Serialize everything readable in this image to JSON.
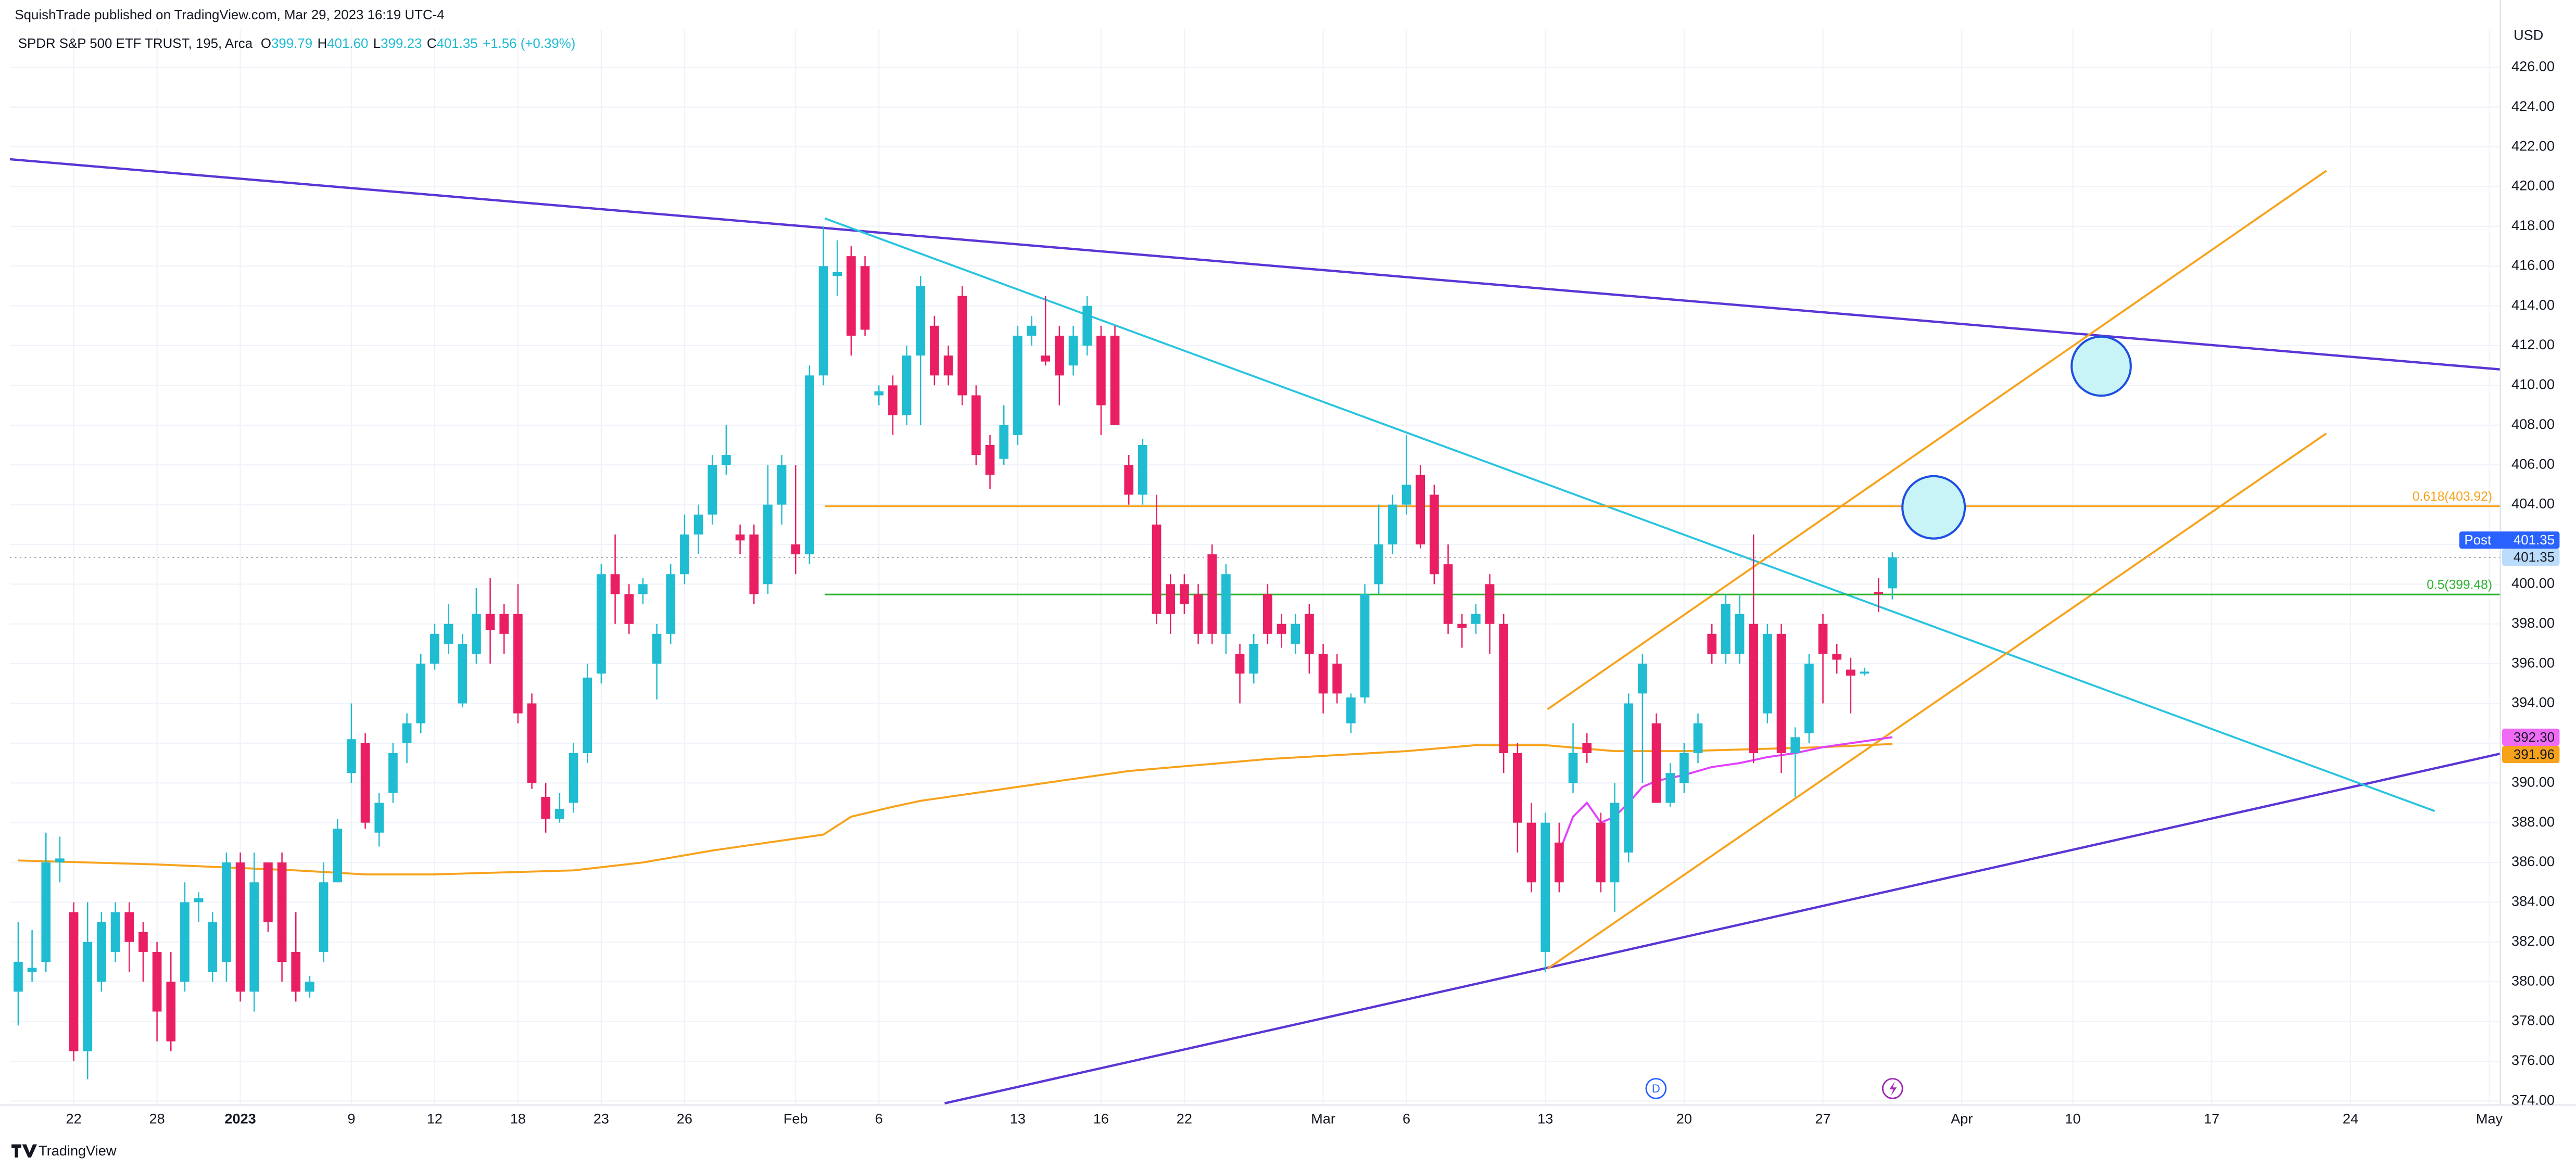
{
  "chart_data": {
    "type": "candlestick",
    "title": "SquishTrade published on TradingView.com, Mar 29, 2023 16:19 UTC-4",
    "symbol": "SPDR S&P 500 ETF TRUST, 195, Arca",
    "legend": [
      {
        "key": "O",
        "value": "399.79"
      },
      {
        "key": "H",
        "value": "401.60"
      },
      {
        "key": "L",
        "value": "399.23"
      },
      {
        "key": "C",
        "value": "401.35"
      }
    ],
    "change": "+1.56 (+0.39%)",
    "currency": "USD",
    "up_color": "#1fbcd2",
    "down_color": "#e91e63",
    "open": [
      379.5,
      380.5,
      381,
      386,
      383.5,
      376.5,
      380,
      381.5,
      383.5,
      382.5,
      381.5,
      380,
      380,
      384,
      380.5,
      381,
      386,
      379.5,
      386,
      386,
      381.5,
      379.5,
      381.5,
      385,
      390.5,
      392,
      387.5,
      389.5,
      392,
      393,
      396,
      397,
      394,
      396.5,
      398.5,
      398.5,
      398.5,
      394,
      389.3,
      388.2,
      389,
      391.5,
      395.5,
      400.5,
      399.5,
      399.5,
      396,
      397.5,
      400.5,
      402.5,
      403.5,
      406,
      402.5,
      402.5,
      400,
      404,
      402,
      401.5,
      410.5,
      415.5,
      416.5,
      416,
      409.5,
      410,
      408.5,
      411.5,
      413,
      411.5,
      414.5,
      409.5,
      407,
      406.3,
      407.5,
      412.5,
      411.5,
      412.5,
      411,
      412,
      412.5,
      412.5,
      406,
      404.5,
      403,
      400,
      400,
      399.5,
      401.5,
      397.5,
      396.5,
      395.5,
      399.5,
      398,
      397,
      398.5,
      396.5,
      396,
      393,
      394.3,
      400,
      402,
      404,
      405.5,
      404.5,
      401,
      398,
      398,
      400,
      398,
      391.5,
      388,
      381.5,
      387,
      390,
      392,
      388,
      385,
      386.5,
      394.5,
      393,
      389,
      390,
      391.5,
      397.5,
      396.5,
      396.5,
      398,
      393.5,
      397.5,
      391.5,
      392.5,
      398,
      396.5,
      395.7,
      395.5,
      399.6,
      399.79
    ],
    "high": [
      383,
      382.6,
      387.5,
      387.3,
      384,
      384,
      383.5,
      384,
      384,
      383,
      382,
      381.5,
      385,
      384.5,
      383.5,
      386.5,
      386.5,
      386.5,
      386,
      386.5,
      383.5,
      380.3,
      386,
      388.2,
      394,
      392.5,
      389.5,
      392,
      393.5,
      396.5,
      398,
      399,
      397.5,
      399.8,
      400.3,
      399,
      400,
      394.5,
      390,
      389.5,
      392,
      396,
      401,
      402.5,
      400,
      400.3,
      398,
      401,
      403.5,
      404,
      406.5,
      408,
      403,
      403,
      406,
      406.5,
      406,
      411,
      418,
      417.3,
      417,
      416.5,
      410,
      410.5,
      412,
      415.5,
      413.5,
      412,
      415,
      410,
      407.5,
      409,
      413,
      413.5,
      414.5,
      413,
      413,
      414.5,
      413,
      413,
      406.5,
      407.3,
      404.5,
      400.5,
      400.5,
      400,
      402,
      401,
      397,
      397.5,
      400,
      398.5,
      398.5,
      399,
      397,
      396.5,
      394.5,
      400,
      404,
      404.5,
      407.5,
      406,
      405,
      402,
      398.5,
      399,
      400.5,
      398.5,
      392,
      389,
      388.5,
      388,
      393,
      392.5,
      388.5,
      390,
      394.5,
      396.5,
      393.5,
      391,
      392,
      393.5,
      398,
      399.5,
      399.5,
      402.5,
      398,
      398,
      392.8,
      396.5,
      398.5,
      397,
      396.3,
      395.8,
      400.3,
      401.6
    ],
    "low": [
      377.8,
      380,
      380.5,
      385,
      376,
      375.1,
      379.5,
      381,
      380.5,
      380,
      377,
      376.5,
      379.5,
      383,
      380,
      380,
      379,
      378.5,
      382.5,
      380,
      379,
      379.2,
      381,
      385,
      390,
      387.7,
      386.8,
      389,
      391,
      392.5,
      395.7,
      396.5,
      393.8,
      396,
      396,
      396.5,
      393,
      389.7,
      387.5,
      388,
      388.5,
      391,
      395,
      398,
      397.5,
      399,
      394.2,
      397,
      400,
      401.5,
      403,
      405.5,
      401.5,
      399,
      399.5,
      403,
      400.5,
      401,
      410,
      414.5,
      411.5,
      412.5,
      409,
      407.5,
      408,
      408,
      410,
      410,
      409,
      406,
      404.8,
      406,
      407,
      412,
      411,
      409,
      410.5,
      411.5,
      407.5,
      408,
      404,
      404,
      398,
      397.5,
      398.5,
      397,
      397,
      396.5,
      394,
      395,
      397,
      396.8,
      396.5,
      395.5,
      393.5,
      394,
      392.5,
      394,
      399.5,
      401.5,
      403.5,
      401.8,
      400,
      397.5,
      396.8,
      397.5,
      396.5,
      390.5,
      386.5,
      384.5,
      380.5,
      384.5,
      389.5,
      391,
      384.5,
      383.5,
      386,
      390,
      389,
      388.8,
      389.5,
      391,
      396,
      396,
      396,
      391,
      393,
      390.5,
      389.3,
      392,
      394,
      395.5,
      393.5,
      395.4,
      398.6,
      399.23
    ],
    "close": [
      381,
      380.7,
      386,
      386.2,
      376.5,
      382,
      383,
      383.5,
      382,
      381.5,
      378.5,
      377,
      384,
      384.2,
      383,
      386,
      379.5,
      385,
      383,
      381,
      379.5,
      380,
      385,
      387.7,
      392.2,
      388,
      389,
      391.5,
      393,
      396,
      397.5,
      398,
      397,
      398.5,
      397.7,
      397.5,
      393.5,
      390,
      388.2,
      388.7,
      391.5,
      395.3,
      400.5,
      399.5,
      398,
      400,
      397.5,
      400.5,
      402.5,
      403.5,
      406,
      406.5,
      402.2,
      399.5,
      404,
      406,
      401.5,
      410.5,
      416,
      415.7,
      412.5,
      412.8,
      409.7,
      408.5,
      411.5,
      415,
      410.5,
      410.5,
      409.5,
      406.5,
      405.5,
      408,
      412.5,
      413,
      411.2,
      410.5,
      412.5,
      414,
      409,
      408,
      404.5,
      407,
      398.5,
      398.5,
      399,
      397.5,
      397.5,
      400.5,
      395.5,
      397,
      397.5,
      397.5,
      398,
      396.5,
      394.5,
      394.5,
      394.3,
      399.5,
      402,
      404,
      405,
      402,
      400.5,
      398,
      397.8,
      398.5,
      398,
      391.5,
      388,
      385,
      388,
      385,
      391.5,
      391.5,
      385,
      389,
      394,
      396,
      389,
      390.5,
      391.5,
      393,
      396.5,
      399,
      398.5,
      391.5,
      397.5,
      391.5,
      392.3,
      396,
      396.5,
      396.2,
      395.4,
      395.6,
      399.5,
      401.35
    ],
    "lines": [
      {
        "color": "#f7a21b",
        "x": [
          0,
          10,
          20,
          25,
          30,
          40,
          45,
          50,
          55,
          58,
          60,
          63,
          65,
          70,
          75,
          80,
          90,
          100,
          105,
          110,
          115,
          120,
          125,
          130,
          135
        ],
        "values": [
          386.1,
          385.9,
          385.6,
          385.4,
          385.4,
          385.6,
          386.0,
          386.6,
          387.1,
          387.4,
          388.3,
          388.8,
          389.1,
          389.6,
          390.1,
          390.6,
          391.2,
          391.6,
          391.9,
          391.9,
          391.6,
          391.6,
          391.7,
          391.8,
          391.96
        ]
      },
      {
        "color": "#e040fb",
        "x": [
          111,
          112,
          113,
          114,
          115,
          116,
          117,
          118,
          120,
          122,
          124,
          126,
          128,
          130,
          132,
          135
        ],
        "values": [
          386.5,
          388.3,
          389.0,
          388.0,
          388.3,
          389.0,
          389.8,
          390.1,
          390.4,
          390.8,
          391.0,
          391.3,
          391.5,
          391.8,
          392.0,
          392.3
        ]
      }
    ],
    "levels": [
      {
        "label": "0.618(403.92)",
        "value": 403.92,
        "color": "#f7a21b"
      },
      {
        "label": "0.5(399.48)",
        "value": 399.48,
        "color": "#2db32d"
      }
    ],
    "price_tags": [
      {
        "value_label": "401.35",
        "value": 401.35,
        "color": "#bbdcfb",
        "text_color": "#131722"
      },
      {
        "label": "Post",
        "value_label": "401.35",
        "value": 401.35,
        "color": "#2962ff",
        "text_color": "#ffffff"
      },
      {
        "value_label": "392.30",
        "value": 392.3,
        "color": "#f06bf5",
        "text_color": "#131722"
      },
      {
        "value_label": "391.96",
        "value": 391.96,
        "color": "#f7a21b",
        "text_color": "#131722"
      }
    ],
    "event_label": "D",
    "footer": "TradingView",
    "xlim": [
      -0.6,
      178.8
    ],
    "xticks": [
      {
        "value": 4,
        "label": "22"
      },
      {
        "value": 10,
        "label": "28"
      },
      {
        "value": 16,
        "label": "2023"
      },
      {
        "value": 24,
        "label": "9"
      },
      {
        "value": 30,
        "label": "12"
      },
      {
        "value": 36,
        "label": "18"
      },
      {
        "value": 42,
        "label": "23"
      },
      {
        "value": 48,
        "label": "26"
      },
      {
        "value": 56,
        "label": "Feb"
      },
      {
        "value": 62,
        "label": "6"
      },
      {
        "value": 72,
        "label": "13"
      },
      {
        "value": 78,
        "label": "16"
      },
      {
        "value": 84,
        "label": "22"
      },
      {
        "value": 94,
        "label": "Mar"
      },
      {
        "value": 100,
        "label": "6"
      },
      {
        "value": 110,
        "label": "13"
      },
      {
        "value": 120,
        "label": "20"
      },
      {
        "value": 130,
        "label": "27"
      },
      {
        "value": 140,
        "label": "Apr"
      },
      {
        "value": 148,
        "label": "10"
      },
      {
        "value": 158,
        "label": "17"
      },
      {
        "value": 168,
        "label": "24"
      },
      {
        "value": 178,
        "label": "May"
      }
    ],
    "ylim": [
      373.8,
      427.9
    ],
    "yticks": [
      {
        "value": 374,
        "label": "374.00"
      },
      {
        "value": 376,
        "label": "376.00"
      },
      {
        "value": 378,
        "label": "378.00"
      },
      {
        "value": 380,
        "label": "380.00"
      },
      {
        "value": 382,
        "label": "382.00"
      },
      {
        "value": 384,
        "label": "384.00"
      },
      {
        "value": 386,
        "label": "386.00"
      },
      {
        "value": 388,
        "label": "388.00"
      },
      {
        "value": 390,
        "label": "390.00"
      },
      {
        "value": 392,
        "label": "392.00"
      },
      {
        "value": 394,
        "label": "394.00"
      },
      {
        "value": 396,
        "label": "396.00"
      },
      {
        "value": 398,
        "label": "398.00"
      },
      {
        "value": 400,
        "label": "400.00"
      },
      {
        "value": 402,
        "label": "402.00"
      },
      {
        "value": 404,
        "label": "404.00"
      },
      {
        "value": 406,
        "label": "406.00"
      },
      {
        "value": 408,
        "label": "408.00"
      },
      {
        "value": 410,
        "label": "410.00"
      },
      {
        "value": 412,
        "label": "412.00"
      },
      {
        "value": 414,
        "label": "414.00"
      },
      {
        "value": 416,
        "label": "416.00"
      },
      {
        "value": 418,
        "label": "418.00"
      },
      {
        "value": 420,
        "label": "420.00"
      },
      {
        "value": 422,
        "label": "422.00"
      },
      {
        "value": 424,
        "label": "424.00"
      },
      {
        "value": 426,
        "label": "426.00"
      }
    ],
    "grid": true
  }
}
